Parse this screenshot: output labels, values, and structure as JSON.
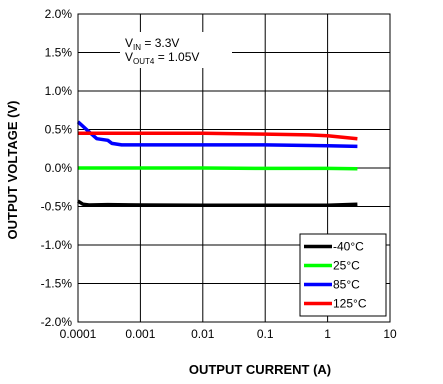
{
  "chart_data": {
    "type": "line",
    "xlabel": "OUTPUT CURRENT (A)",
    "ylabel": "OUTPUT VOLTAGE (V)",
    "x_scale": "log",
    "xlim": [
      0.0001,
      10
    ],
    "ylim": [
      -2.0,
      2.0
    ],
    "x_ticks": [
      {
        "value": 0.0001,
        "label": "0.0001"
      },
      {
        "value": 0.001,
        "label": "0.001"
      },
      {
        "value": 0.01,
        "label": "0.01"
      },
      {
        "value": 0.1,
        "label": "0.1"
      },
      {
        "value": 1,
        "label": "1"
      },
      {
        "value": 10,
        "label": "10"
      }
    ],
    "y_ticks": [
      {
        "value": 2.0,
        "label": "2.0%"
      },
      {
        "value": 1.5,
        "label": "1.5%"
      },
      {
        "value": 1.0,
        "label": "1.0%"
      },
      {
        "value": 0.5,
        "label": "0.5%"
      },
      {
        "value": 0.0,
        "label": "0.0%"
      },
      {
        "value": -0.5,
        "label": "-0.5%"
      },
      {
        "value": -1.0,
        "label": "-1.0%"
      },
      {
        "value": -1.5,
        "label": "-1.5%"
      },
      {
        "value": -2.0,
        "label": "-2.0%"
      }
    ],
    "grid": true,
    "annotation": {
      "line1": {
        "main": "V",
        "sub": "IN",
        "rest": " = 3.3V"
      },
      "line2": {
        "main": "V",
        "sub": "OUT4",
        "rest": " = 1.05V"
      }
    },
    "legend_position": "bottom-right",
    "series": [
      {
        "name": "-40°C",
        "color": "#000000",
        "points": [
          [
            0.0001,
            -0.43
          ],
          [
            0.00012,
            -0.47
          ],
          [
            0.00015,
            -0.48
          ],
          [
            0.0003,
            -0.475
          ],
          [
            0.001,
            -0.48
          ],
          [
            0.01,
            -0.485
          ],
          [
            0.1,
            -0.485
          ],
          [
            1,
            -0.485
          ],
          [
            3,
            -0.47
          ]
        ]
      },
      {
        "name": "25°C",
        "color": "#00ff00",
        "points": [
          [
            0.0001,
            0.0
          ],
          [
            0.001,
            0.0
          ],
          [
            0.01,
            0.0
          ],
          [
            0.1,
            -0.005
          ],
          [
            1,
            -0.005
          ],
          [
            3,
            -0.01
          ]
        ]
      },
      {
        "name": "85°C",
        "color": "#0000ff",
        "points": [
          [
            0.0001,
            0.6
          ],
          [
            0.00015,
            0.47
          ],
          [
            0.0002,
            0.38
          ],
          [
            0.0003,
            0.36
          ],
          [
            0.00035,
            0.32
          ],
          [
            0.0005,
            0.3
          ],
          [
            0.001,
            0.3
          ],
          [
            0.01,
            0.3
          ],
          [
            0.1,
            0.3
          ],
          [
            1,
            0.29
          ],
          [
            3,
            0.28
          ]
        ]
      },
      {
        "name": "125°C",
        "color": "#ff0000",
        "points": [
          [
            0.0001,
            0.45
          ],
          [
            0.001,
            0.45
          ],
          [
            0.01,
            0.45
          ],
          [
            0.1,
            0.44
          ],
          [
            0.5,
            0.43
          ],
          [
            1,
            0.42
          ],
          [
            3,
            0.38
          ]
        ]
      }
    ]
  }
}
